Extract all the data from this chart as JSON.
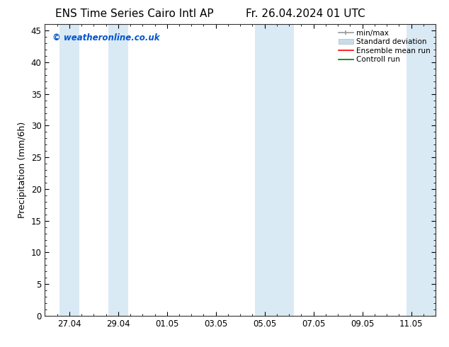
{
  "title_left": "ENS Time Series Cairo Intl AP",
  "title_right": "Fr. 26.04.2024 01 UTC",
  "ylabel": "Precipitation (mm/6h)",
  "watermark": "© weatheronline.co.uk",
  "watermark_color": "#0055cc",
  "background_color": "#ffffff",
  "plot_bg_color": "#ffffff",
  "ylim": [
    0,
    46
  ],
  "yticks": [
    0,
    5,
    10,
    15,
    20,
    25,
    30,
    35,
    40,
    45
  ],
  "shaded_band_color": "#daeaf5",
  "legend_labels": [
    "min/max",
    "Standard deviation",
    "Ensemble mean run",
    "Controll run"
  ],
  "legend_line_red": "#ff0000",
  "legend_line_green": "#007700",
  "tick_labels": [
    "27.04",
    "29.04",
    "01.05",
    "03.05",
    "05.05",
    "07.05",
    "09.05",
    "11.05"
  ],
  "tick_positions": [
    1,
    3,
    5,
    7,
    9,
    11,
    13,
    15
  ],
  "x_min": 0,
  "x_max": 16,
  "shaded_regions": [
    [
      0.6,
      1.4
    ],
    [
      2.6,
      3.4
    ],
    [
      8.6,
      9.4
    ],
    [
      9.4,
      10.2
    ],
    [
      14.8,
      16.0
    ]
  ],
  "figsize": [
    6.34,
    4.9
  ],
  "dpi": 100,
  "title_fontsize": 11,
  "axis_fontsize": 8.5,
  "ylabel_fontsize": 9
}
